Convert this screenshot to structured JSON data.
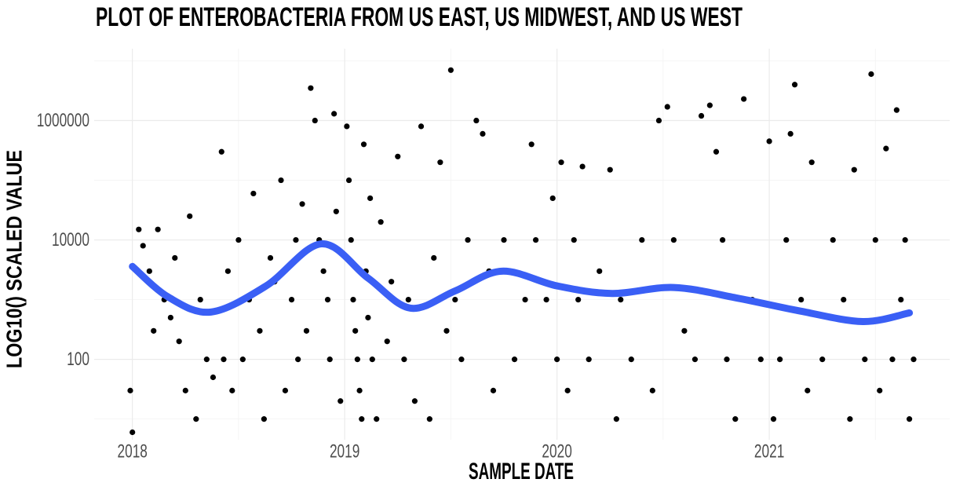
{
  "chart_data": {
    "type": "scatter",
    "title": "PLOT OF ENTEROBACTERIA FROM US EAST, US MIDWEST, AND US WEST",
    "xlabel": "SAMPLE DATE",
    "ylabel": "LOG10() SCALED VALUE",
    "log_y": true,
    "grid": true,
    "xlim": [
      2017.82,
      2021.85
    ],
    "xticks": [
      2018,
      2019,
      2020,
      2021
    ],
    "xminor": [
      2018.5,
      2019.5,
      2020.5,
      2021.5
    ],
    "ylim": [
      4.5,
      16000000
    ],
    "yticks": [
      100,
      10000,
      1000000
    ],
    "yminor": [
      10,
      1000,
      100000,
      10000000
    ],
    "series": [
      {
        "color": "#000000",
        "kind": "points",
        "x": [
          2017.99,
          2018.0,
          2018.03,
          2018.05,
          2018.08,
          2018.1,
          2018.12,
          2018.15,
          2018.18,
          2018.2,
          2018.22,
          2018.25,
          2018.27,
          2018.3,
          2018.32,
          2018.35,
          2018.38,
          2018.42,
          2018.43,
          2018.45,
          2018.47,
          2018.5,
          2018.52,
          2018.55,
          2018.57,
          2018.6,
          2018.62,
          2018.65,
          2018.67,
          2018.7,
          2018.72,
          2018.75,
          2018.77,
          2018.78,
          2018.8,
          2018.82,
          2018.84,
          2018.86,
          2018.88,
          2018.9,
          2018.92,
          2018.93,
          2018.95,
          2018.96,
          2018.98,
          2019.01,
          2019.02,
          2019.03,
          2019.04,
          2019.05,
          2019.06,
          2019.07,
          2019.08,
          2019.09,
          2019.1,
          2019.11,
          2019.12,
          2019.13,
          2019.15,
          2019.17,
          2019.2,
          2019.22,
          2019.25,
          2019.28,
          2019.3,
          2019.33,
          2019.36,
          2019.4,
          2019.42,
          2019.45,
          2019.48,
          2019.5,
          2019.52,
          2019.55,
          2019.58,
          2019.62,
          2019.65,
          2019.68,
          2019.7,
          2019.75,
          2019.8,
          2019.85,
          2019.88,
          2019.9,
          2019.95,
          2019.98,
          2020.0,
          2020.02,
          2020.05,
          2020.08,
          2020.1,
          2020.12,
          2020.15,
          2020.2,
          2020.25,
          2020.28,
          2020.3,
          2020.35,
          2020.4,
          2020.45,
          2020.48,
          2020.52,
          2020.55,
          2020.6,
          2020.65,
          2020.68,
          2020.72,
          2020.75,
          2020.78,
          2020.8,
          2020.84,
          2020.88,
          2020.92,
          2020.96,
          2021.0,
          2021.02,
          2021.05,
          2021.08,
          2021.1,
          2021.12,
          2021.15,
          2021.18,
          2021.2,
          2021.25,
          2021.3,
          2021.35,
          2021.38,
          2021.4,
          2021.45,
          2021.48,
          2021.5,
          2021.52,
          2021.55,
          2021.58,
          2021.6,
          2021.62,
          2021.64,
          2021.66,
          2021.68
        ],
        "values": [
          30,
          6,
          15000,
          8000,
          3000,
          300,
          15000,
          1000,
          500,
          5000,
          200,
          30,
          25000,
          10,
          1000,
          100,
          50,
          300000,
          100,
          3000,
          30,
          10000,
          100,
          1000,
          60000,
          300,
          10,
          5000,
          2000,
          100000,
          30,
          1000,
          10000,
          100,
          40000,
          300,
          3500000,
          1000000,
          10000,
          3000,
          1000,
          100,
          1300000,
          30000,
          20,
          800000,
          100000,
          10000,
          1000,
          300,
          100,
          30,
          10,
          400000,
          3000,
          500,
          50000,
          100,
          10,
          20000,
          200,
          2000,
          250000,
          100,
          1000,
          20,
          800000,
          10,
          5000,
          200000,
          300,
          7000000,
          1000,
          100,
          10000,
          1000000,
          600000,
          3000,
          30,
          10000,
          100,
          1000,
          400000,
          10000,
          1000,
          50000,
          100,
          200000,
          30,
          10000,
          1000,
          170000,
          100,
          3000,
          150000,
          10,
          1000,
          100,
          10000,
          30,
          1000000,
          1700000,
          10000,
          300,
          100,
          1200000,
          1800000,
          300000,
          10000,
          100,
          10,
          2300000,
          1000,
          100,
          450000,
          10,
          100,
          10000,
          600000,
          4000000,
          1000,
          30,
          200000,
          100,
          10000,
          1000,
          10,
          150000,
          100,
          6000000,
          10000,
          30,
          340000,
          100,
          1500000,
          1000,
          10000,
          10,
          100
        ]
      },
      {
        "color": "#3a5ff5",
        "kind": "smooth",
        "x": [
          2018.0,
          2018.17,
          2018.37,
          2018.63,
          2018.89,
          2019.11,
          2019.31,
          2019.52,
          2019.74,
          2020.0,
          2020.26,
          2020.55,
          2020.85,
          2021.14,
          2021.44,
          2021.66
        ],
        "values": [
          3600,
          1100,
          620,
          1700,
          8600,
          2300,
          720,
          1400,
          3000,
          1700,
          1270,
          1600,
          1060,
          650,
          430,
          600
        ]
      }
    ]
  }
}
